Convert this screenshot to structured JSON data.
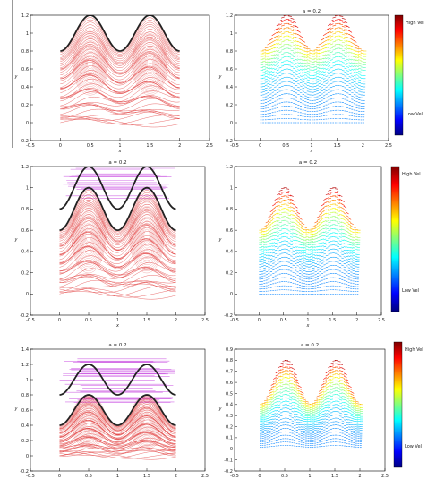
{
  "colorbar": {
    "high_label": "High Vel",
    "low_label": "Low Vel"
  },
  "colors": {
    "streamline": "#e03a3a",
    "purple_lines": "#c84be0",
    "boundary": "#222222",
    "green_dots": "#33cc33"
  },
  "chart_data": [
    {
      "panel": "row1-left",
      "type": "line",
      "title": "",
      "xlabel": "x",
      "ylabel": "y",
      "xlim": [
        -0.5,
        2.5
      ],
      "ylim": [
        -0.2,
        1.2
      ],
      "xticks": [
        "-0.5",
        "0",
        "0.5",
        "1",
        "1.5",
        "2",
        "2.5"
      ],
      "yticks": [
        "-0.2",
        "0",
        "0.2",
        "0.4",
        "0.6",
        "0.8",
        "1",
        "1.2"
      ],
      "upper_wall": {
        "x0": 0,
        "x1": 2,
        "base": 1.0,
        "amplitude": 0.2,
        "period": 1
      }
    },
    {
      "panel": "row1-right",
      "type": "scatter",
      "title": "a = 0.2",
      "xlabel": "x",
      "ylabel": "y",
      "xlim": [
        -0.5,
        2.5
      ],
      "ylim": [
        -0.2,
        1.2
      ],
      "xticks": [
        "-0.5",
        "0",
        "0.5",
        "1",
        "1.5",
        "2",
        "2.5"
      ],
      "yticks": [
        "-0.2",
        "0",
        "0.2",
        "0.4",
        "0.6",
        "0.8",
        "1",
        "1.2"
      ],
      "upper_wall": {
        "x0": 0,
        "x1": 2,
        "base": 1.0,
        "amplitude": 0.2,
        "period": 1
      }
    },
    {
      "panel": "row2-left",
      "type": "line",
      "title": "a = 0.2",
      "xlabel": "x",
      "ylabel": "y",
      "xlim": [
        -0.5,
        2.5
      ],
      "ylim": [
        -0.2,
        1.2
      ],
      "xticks": [
        "-0.5",
        "0",
        "0.5",
        "1",
        "1.5",
        "2",
        "2.5"
      ],
      "yticks": [
        "-0.2",
        "0",
        "0.2",
        "0.4",
        "0.6",
        "0.8",
        "1",
        "1.2"
      ],
      "upper_wall": {
        "x0": 0,
        "x1": 2,
        "base": 1.0,
        "amplitude": 0.2,
        "period": 1
      },
      "lower_wall": {
        "x0": 0,
        "x1": 2,
        "base": 0.8,
        "amplitude": 0.2,
        "period": 1
      }
    },
    {
      "panel": "row2-right",
      "type": "scatter",
      "title": "a = 0.2",
      "xlabel": "x",
      "ylabel": "y",
      "xlim": [
        -0.5,
        2.5
      ],
      "ylim": [
        -0.2,
        1.2
      ],
      "xticks": [
        "-0.5",
        "0",
        "0.5",
        "1",
        "1.5",
        "2",
        "2.5"
      ],
      "yticks": [
        "-0.2",
        "0",
        "0.2",
        "0.4",
        "0.6",
        "0.8",
        "1",
        "1.2"
      ],
      "upper_wall": {
        "x0": 0,
        "x1": 2,
        "base": 0.8,
        "amplitude": 0.2,
        "period": 1
      }
    },
    {
      "panel": "row3-left",
      "type": "line",
      "title": "a = 0.2",
      "xlabel": "x",
      "ylabel": "y",
      "xlim": [
        -0.5,
        2.5
      ],
      "ylim": [
        -0.2,
        1.4
      ],
      "xticks": [
        "-0.5",
        "0",
        "0.5",
        "1",
        "1.5",
        "2",
        "2.5"
      ],
      "yticks": [
        "-0.2",
        "0",
        "0.2",
        "0.4",
        "0.6",
        "0.8",
        "1",
        "1.2",
        "1.4"
      ],
      "upper_wall": {
        "x0": 0,
        "x1": 2,
        "base": 1.0,
        "amplitude": 0.2,
        "period": 1
      },
      "lower_wall": {
        "x0": 0,
        "x1": 2,
        "base": 0.6,
        "amplitude": 0.2,
        "period": 1
      }
    },
    {
      "panel": "row3-right",
      "type": "scatter",
      "title": "a = 0.2",
      "xlabel": "x",
      "ylabel": "y",
      "xlim": [
        -0.5,
        2.5
      ],
      "ylim": [
        -0.2,
        0.9
      ],
      "xticks": [
        "-0.5",
        "0",
        "0.5",
        "1",
        "1.5",
        "2",
        "2.5"
      ],
      "yticks": [
        "-0.2",
        "-0.1",
        "0",
        "0.1",
        "0.2",
        "0.3",
        "0.4",
        "0.5",
        "0.6",
        "0.7",
        "0.8",
        "0.9"
      ],
      "upper_wall": {
        "x0": 0,
        "x1": 2,
        "base": 0.6,
        "amplitude": 0.2,
        "period": 1
      }
    }
  ]
}
